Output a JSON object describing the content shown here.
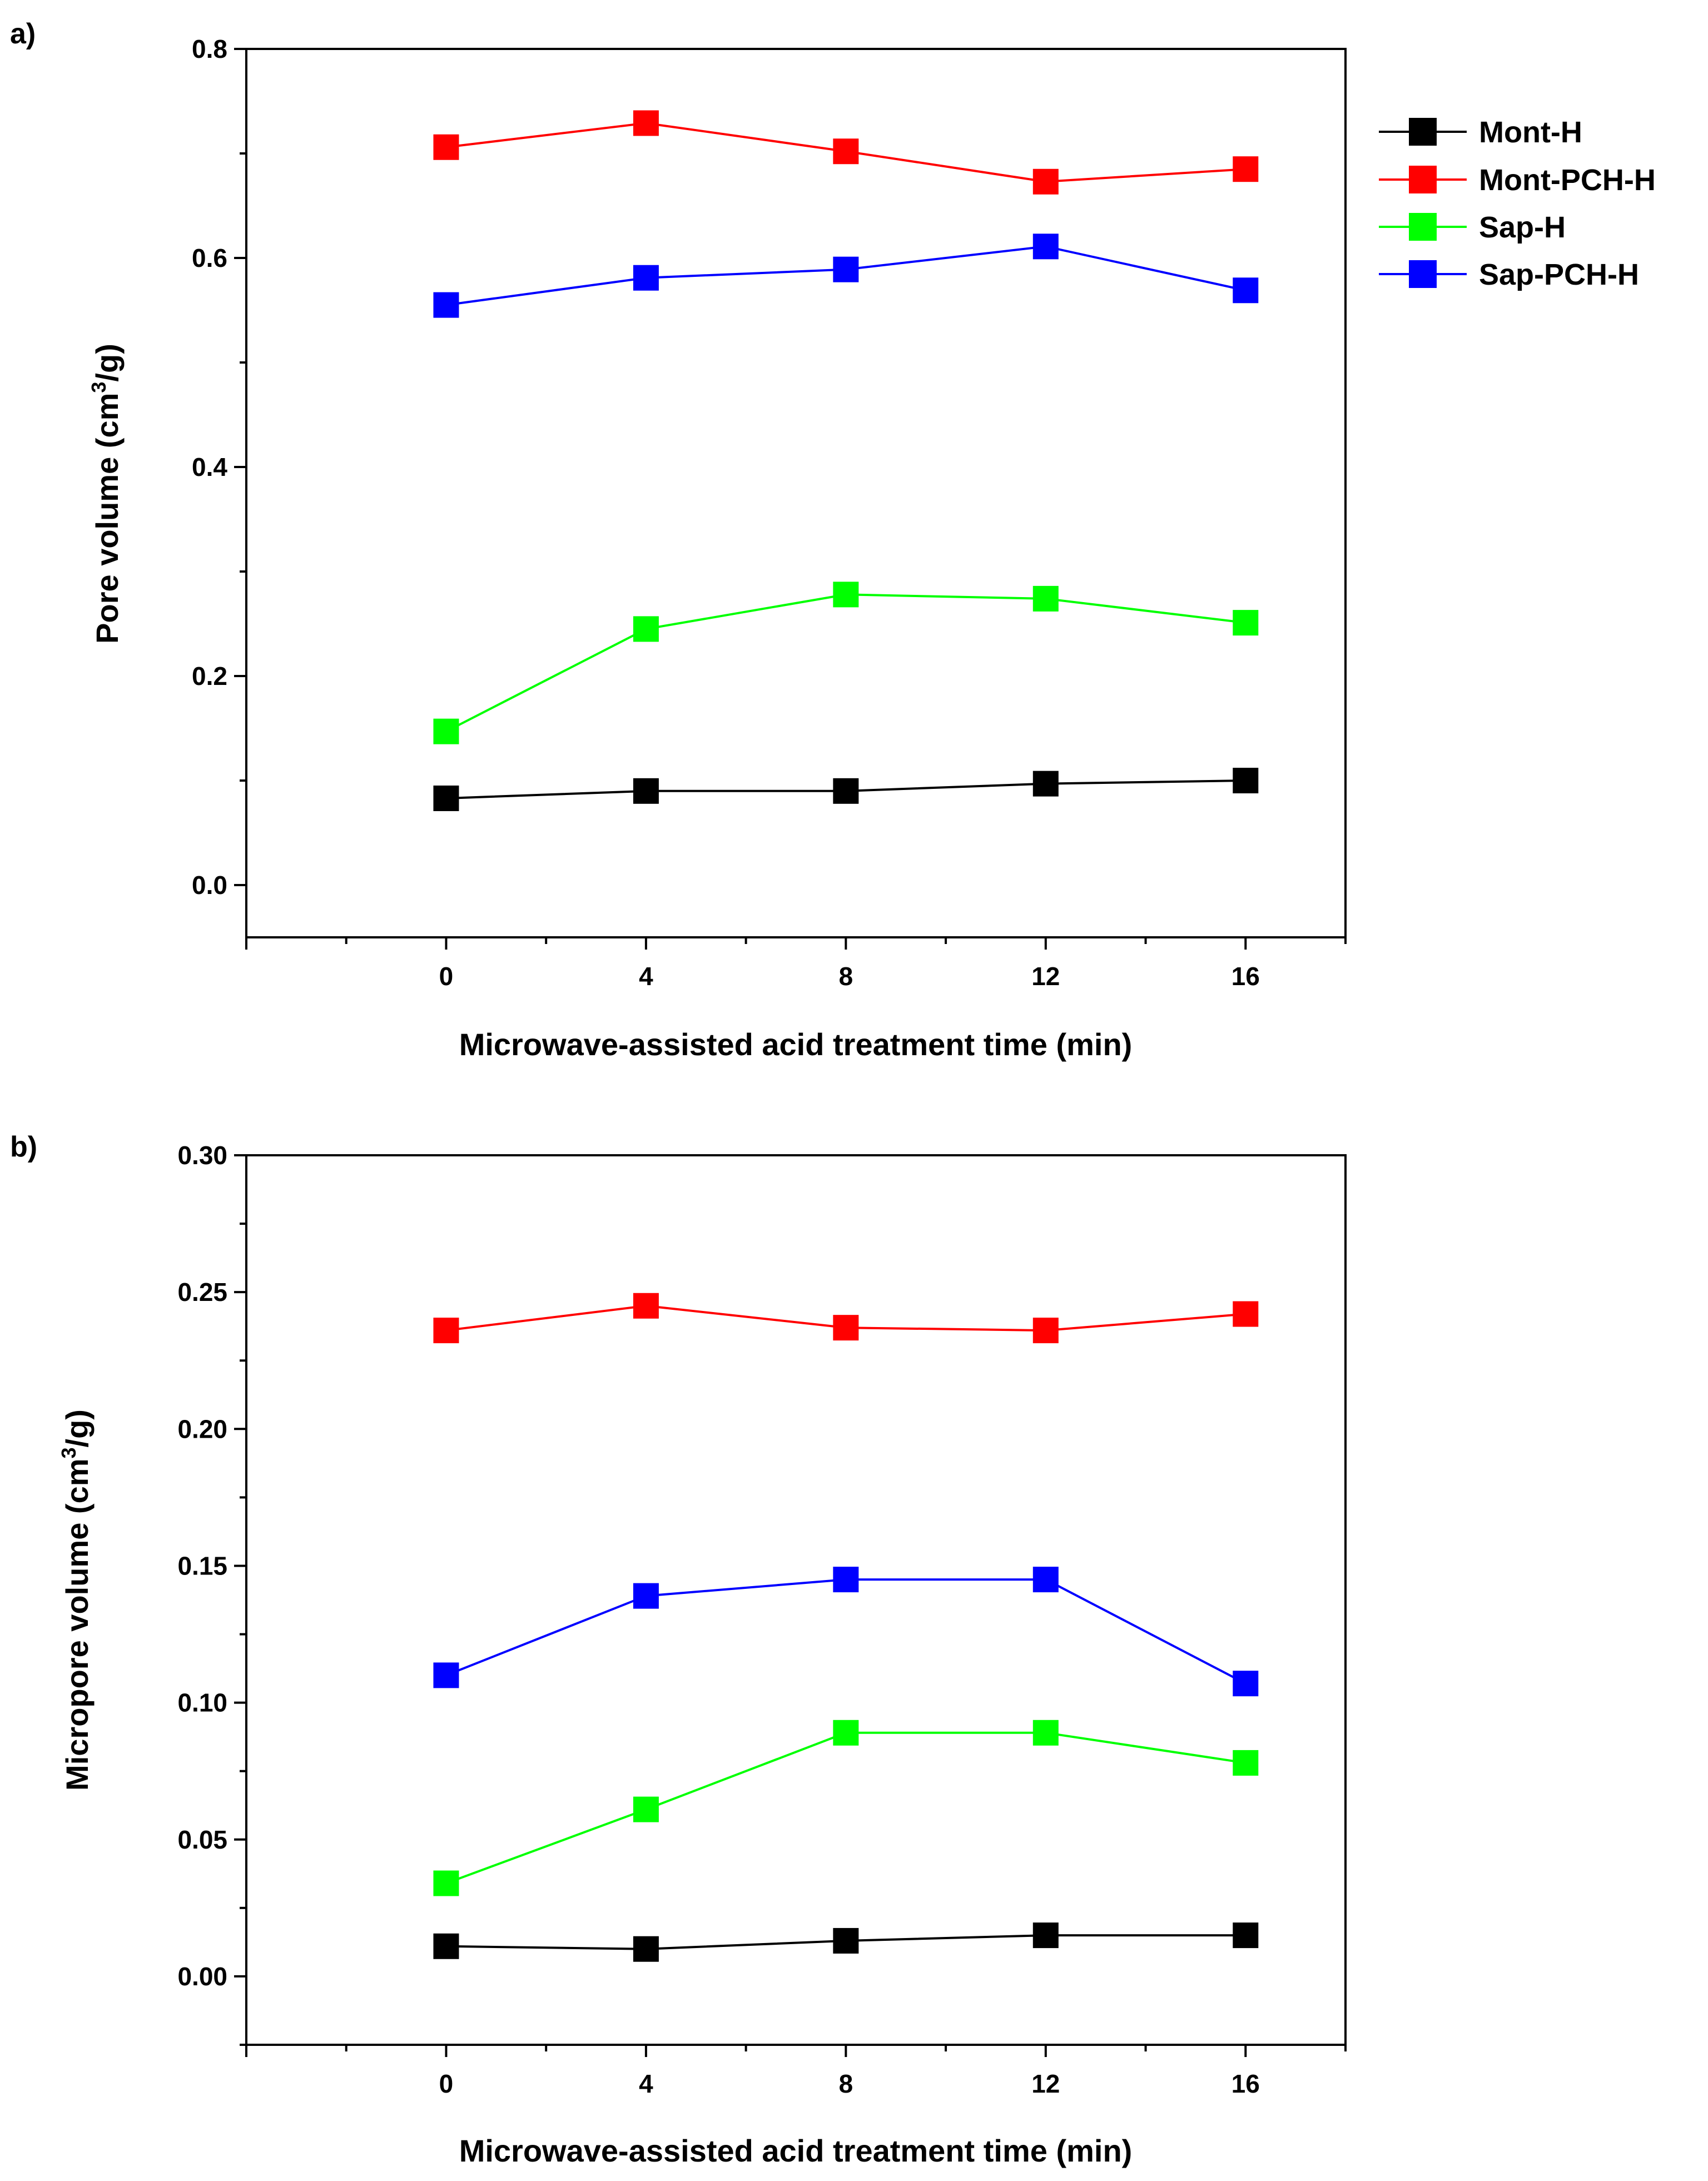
{
  "chart_data": [
    {
      "type": "line",
      "panel_label": "a)",
      "xlabel": "Microwave-assisted acid treatment time (min)",
      "ylabel_main": "Pore volume (cm",
      "ylabel_sup": "3",
      "ylabel_tail": "/g)",
      "x": [
        0,
        4,
        8,
        12,
        16
      ],
      "x_ticks": [
        "0",
        "4",
        "8",
        "12",
        "16"
      ],
      "y_ticks": [
        "0.0",
        "0.2",
        "0.4",
        "0.6",
        "0.8"
      ],
      "xlim": [
        -4,
        18
      ],
      "ylim": [
        -0.05,
        0.8
      ],
      "legend_position": "top-right (outside plot)",
      "series": [
        {
          "name": "Mont-H",
          "color": "#000000",
          "values": [
            0.083,
            0.09,
            0.09,
            0.097,
            0.1
          ]
        },
        {
          "name": "Mont-PCH-H",
          "color": "#ff0000",
          "values": [
            0.706,
            0.729,
            0.702,
            0.673,
            0.685
          ]
        },
        {
          "name": "Sap-H",
          "color": "#00ff00",
          "values": [
            0.147,
            0.245,
            0.278,
            0.274,
            0.251
          ]
        },
        {
          "name": "Sap-PCH-H",
          "color": "#0000ff",
          "values": [
            0.555,
            0.581,
            0.589,
            0.611,
            0.569
          ]
        }
      ]
    },
    {
      "type": "line",
      "panel_label": "b)",
      "xlabel": "Microwave-assisted acid treatment time (min)",
      "ylabel_main": "Micropore volume (cm",
      "ylabel_sup": "3",
      "ylabel_tail": "/g)",
      "x": [
        0,
        4,
        8,
        12,
        16
      ],
      "x_ticks": [
        "0",
        "4",
        "8",
        "12",
        "16"
      ],
      "y_ticks": [
        "0.00",
        "0.05",
        "0.10",
        "0.15",
        "0.20",
        "0.25",
        "0.30"
      ],
      "xlim": [
        -4,
        18
      ],
      "ylim": [
        -0.025,
        0.3
      ],
      "series": [
        {
          "name": "Mont-H",
          "color": "#000000",
          "values": [
            0.011,
            0.01,
            0.013,
            0.015,
            0.015
          ]
        },
        {
          "name": "Mont-PCH-H",
          "color": "#ff0000",
          "values": [
            0.236,
            0.245,
            0.237,
            0.236,
            0.242
          ]
        },
        {
          "name": "Sap-H",
          "color": "#00ff00",
          "values": [
            0.034,
            0.061,
            0.089,
            0.089,
            0.078
          ]
        },
        {
          "name": "Sap-PCH-H",
          "color": "#0000ff",
          "values": [
            0.11,
            0.139,
            0.145,
            0.145,
            0.107
          ]
        }
      ]
    }
  ]
}
